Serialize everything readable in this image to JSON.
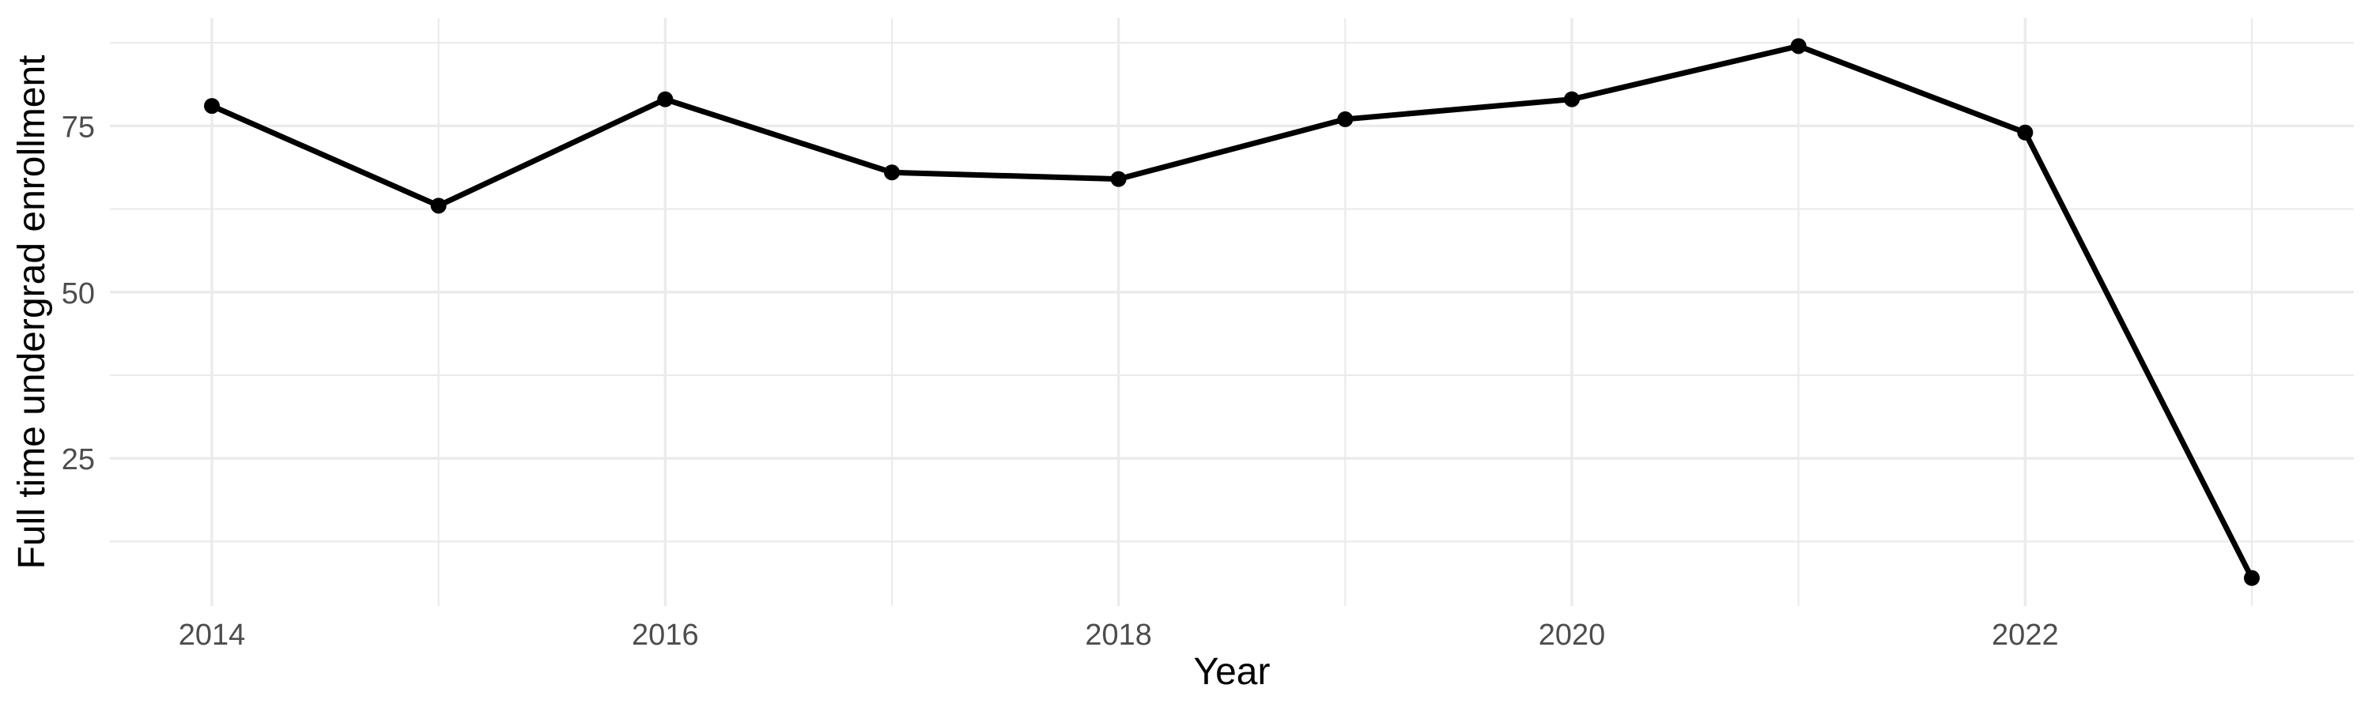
{
  "chart_data": {
    "type": "line",
    "x": [
      2014,
      2015,
      2016,
      2017,
      2018,
      2019,
      2020,
      2021,
      2022,
      2023
    ],
    "values": [
      78,
      63,
      79,
      68,
      67,
      76,
      79,
      87,
      74,
      7
    ],
    "title": "",
    "xlabel": "Year",
    "ylabel": "Full time undergrad enrollment",
    "x_tick_values": [
      2014,
      2016,
      2018,
      2020,
      2022
    ],
    "x_tick_labels": [
      "2014",
      "2016",
      "2018",
      "2020",
      "2022"
    ],
    "x_minor_values": [
      2015,
      2017,
      2019,
      2021,
      2023
    ],
    "y_tick_values": [
      25,
      50,
      75
    ],
    "y_tick_labels": [
      "25",
      "50",
      "75"
    ],
    "y_minor_values": [
      12.5,
      37.5,
      62.5,
      87.5
    ],
    "xlim": [
      2013.55,
      2023.45
    ],
    "ylim": [
      2.8,
      91.2
    ],
    "grid": true,
    "legend": "none",
    "colors": {
      "line": "#000000",
      "point": "#000000",
      "grid": "#EBEBEB",
      "tick_label": "#4D4D4D",
      "axis_title": "#000000",
      "background": "#FFFFFF"
    }
  }
}
